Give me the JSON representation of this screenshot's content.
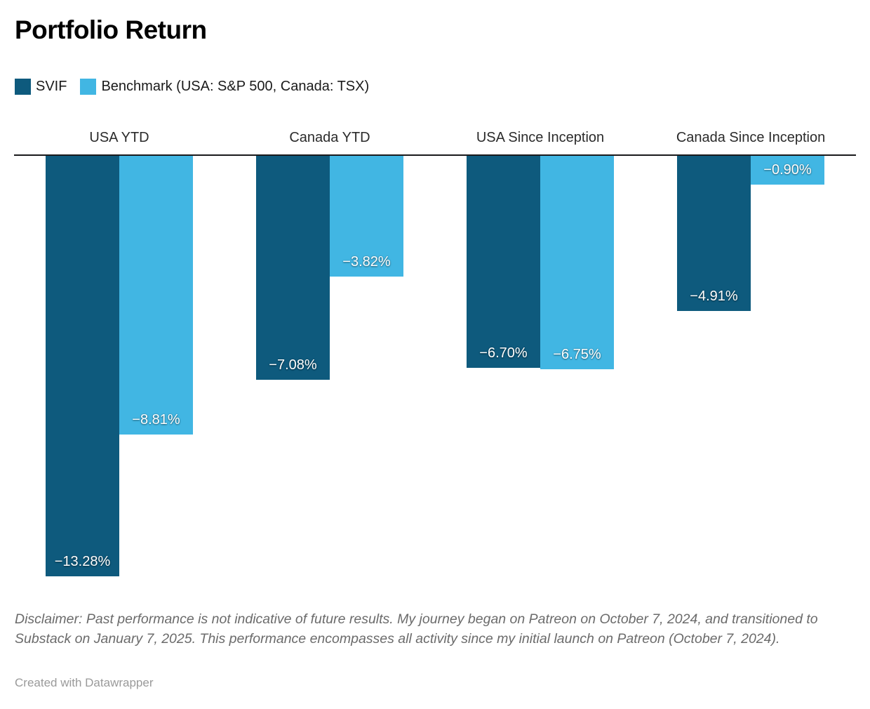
{
  "title": "Portfolio Return",
  "legend": [
    {
      "name": "svif",
      "label": "SVIF",
      "color": "#0e5a7d"
    },
    {
      "name": "benchmark",
      "label": "Benchmark (USA: S&P 500, Canada: TSX)",
      "color": "#41b6e3"
    }
  ],
  "colors": {
    "svif": "#0e5a7d",
    "benchmark": "#41b6e3",
    "axis_line": "#1a1a1c",
    "value_label_text": "#ffffff"
  },
  "chart_data": {
    "type": "bar",
    "orientation": "vertical",
    "title": "Portfolio Return",
    "categories": [
      "USA YTD",
      "Canada YTD",
      "USA Since Inception",
      "Canada Since Inception"
    ],
    "series": [
      {
        "name": "SVIF",
        "color": "#0e5a7d",
        "values": [
          -13.28,
          -7.08,
          -6.7,
          -4.91
        ]
      },
      {
        "name": "Benchmark (USA: S&P 500, Canada: TSX)",
        "color": "#41b6e3",
        "values": [
          -8.81,
          -3.82,
          -6.75,
          -0.9
        ]
      }
    ],
    "value_labels": [
      [
        "−13.28%",
        "−7.08%",
        "−6.70%",
        "−4.91%"
      ],
      [
        "−8.81%",
        "−3.82%",
        "−6.75%",
        "−0.90%"
      ]
    ],
    "ylabel": "",
    "xlabel": "",
    "ylim": [
      -13.5,
      0
    ],
    "baseline": 0,
    "grid": false,
    "legend_position": "top"
  },
  "footer": {
    "disclaimer": "Disclaimer: Past performance is not indicative of future results. My journey began on Patreon on October 7, 2024, and transitioned to Substack on January 7, 2025. This performance encompasses all activity since my initial launch on Patreon (October 7, 2024).",
    "attribution": "Created with Datawrapper"
  }
}
